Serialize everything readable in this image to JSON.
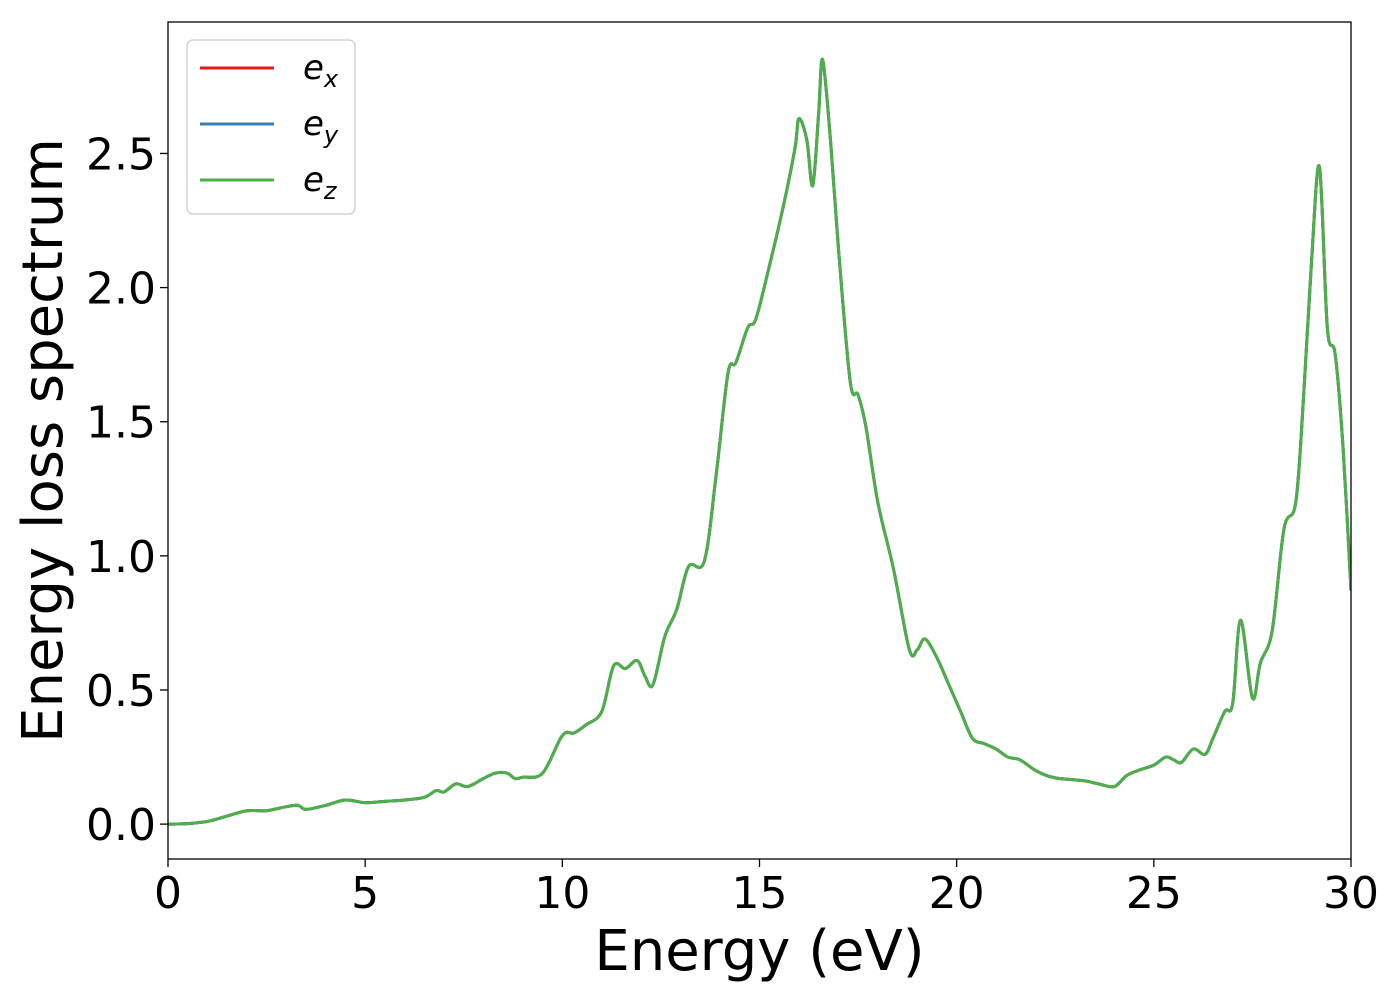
{
  "chart_data": {
    "type": "line",
    "title": "",
    "xlabel": "Energy (eV)",
    "ylabel": "Energy loss spectrum",
    "xlim": [
      0,
      30
    ],
    "ylim": [
      -0.13,
      2.99
    ],
    "xticks": [
      0,
      5,
      10,
      15,
      20,
      25,
      30
    ],
    "xtick_labels": [
      "0",
      "5",
      "10",
      "15",
      "20",
      "25",
      "30"
    ],
    "yticks": [
      0.0,
      0.5,
      1.0,
      1.5,
      2.0,
      2.5
    ],
    "ytick_labels": [
      "0.0",
      "0.5",
      "1.0",
      "1.5",
      "2.0",
      "2.5"
    ],
    "grid": false,
    "legend_position": "top-left",
    "x": [
      0,
      0.5,
      1.0,
      1.5,
      2.0,
      2.5,
      3.0,
      3.3,
      3.5,
      4.0,
      4.5,
      5.0,
      5.5,
      6.0,
      6.5,
      6.8,
      7.0,
      7.3,
      7.6,
      8.0,
      8.3,
      8.6,
      8.8,
      9.0,
      9.5,
      10.0,
      10.3,
      10.6,
      11.0,
      11.3,
      11.6,
      11.9,
      12.1,
      12.3,
      12.6,
      12.9,
      13.2,
      13.6,
      13.9,
      14.2,
      14.4,
      14.7,
      14.9,
      15.2,
      15.6,
      15.9,
      16.0,
      16.2,
      16.35,
      16.5,
      16.6,
      16.8,
      17.0,
      17.3,
      17.5,
      17.7,
      18.0,
      18.4,
      18.8,
      19.0,
      19.2,
      19.5,
      19.8,
      20.1,
      20.4,
      20.7,
      21.0,
      21.3,
      21.6,
      22.0,
      22.3,
      22.6,
      23.0,
      23.3,
      23.6,
      24.0,
      24.3,
      24.6,
      25.0,
      25.3,
      25.5,
      25.7,
      26.0,
      26.3,
      26.5,
      26.8,
      27.0,
      27.2,
      27.5,
      27.7,
      28.0,
      28.3,
      28.6,
      28.8,
      29.0,
      29.2,
      29.4,
      29.6,
      29.8,
      30.0
    ],
    "series": [
      {
        "name": "e_x",
        "color": "#e41a1c",
        "values": [
          0.0,
          0.002,
          0.01,
          0.03,
          0.05,
          0.05,
          0.065,
          0.07,
          0.055,
          0.07,
          0.09,
          0.08,
          0.085,
          0.09,
          0.1,
          0.125,
          0.12,
          0.15,
          0.14,
          0.17,
          0.19,
          0.19,
          0.17,
          0.175,
          0.19,
          0.33,
          0.34,
          0.37,
          0.42,
          0.59,
          0.58,
          0.61,
          0.55,
          0.52,
          0.7,
          0.8,
          0.96,
          0.98,
          1.3,
          1.68,
          1.72,
          1.85,
          1.88,
          2.05,
          2.3,
          2.52,
          2.63,
          2.55,
          2.38,
          2.65,
          2.85,
          2.55,
          2.15,
          1.65,
          1.6,
          1.48,
          1.2,
          0.95,
          0.65,
          0.65,
          0.69,
          0.62,
          0.52,
          0.42,
          0.32,
          0.3,
          0.28,
          0.25,
          0.24,
          0.2,
          0.18,
          0.17,
          0.165,
          0.16,
          0.15,
          0.14,
          0.18,
          0.2,
          0.22,
          0.25,
          0.24,
          0.23,
          0.28,
          0.26,
          0.32,
          0.42,
          0.45,
          0.76,
          0.47,
          0.6,
          0.72,
          1.1,
          1.2,
          1.6,
          2.1,
          2.45,
          1.85,
          1.75,
          1.4,
          0.87
        ]
      },
      {
        "name": "e_y",
        "color": "#377eb8",
        "values": [
          0.0,
          0.002,
          0.01,
          0.03,
          0.05,
          0.05,
          0.065,
          0.07,
          0.055,
          0.07,
          0.09,
          0.08,
          0.085,
          0.09,
          0.1,
          0.125,
          0.12,
          0.15,
          0.14,
          0.17,
          0.19,
          0.19,
          0.17,
          0.175,
          0.19,
          0.33,
          0.34,
          0.37,
          0.42,
          0.59,
          0.58,
          0.61,
          0.55,
          0.52,
          0.7,
          0.8,
          0.96,
          0.98,
          1.3,
          1.68,
          1.72,
          1.85,
          1.88,
          2.05,
          2.3,
          2.52,
          2.63,
          2.55,
          2.38,
          2.65,
          2.85,
          2.55,
          2.15,
          1.65,
          1.6,
          1.48,
          1.2,
          0.95,
          0.65,
          0.65,
          0.69,
          0.62,
          0.52,
          0.42,
          0.32,
          0.3,
          0.28,
          0.25,
          0.24,
          0.2,
          0.18,
          0.17,
          0.165,
          0.16,
          0.15,
          0.14,
          0.18,
          0.2,
          0.22,
          0.25,
          0.24,
          0.23,
          0.28,
          0.26,
          0.32,
          0.42,
          0.45,
          0.76,
          0.47,
          0.6,
          0.72,
          1.1,
          1.2,
          1.6,
          2.1,
          2.45,
          1.85,
          1.75,
          1.4,
          0.87
        ]
      },
      {
        "name": "e_z",
        "color": "#4daf4a",
        "values": [
          0.0,
          0.002,
          0.01,
          0.03,
          0.05,
          0.05,
          0.065,
          0.07,
          0.055,
          0.07,
          0.09,
          0.08,
          0.085,
          0.09,
          0.1,
          0.125,
          0.12,
          0.15,
          0.14,
          0.17,
          0.19,
          0.19,
          0.17,
          0.175,
          0.19,
          0.33,
          0.34,
          0.37,
          0.42,
          0.59,
          0.58,
          0.61,
          0.55,
          0.52,
          0.7,
          0.8,
          0.96,
          0.98,
          1.3,
          1.68,
          1.72,
          1.85,
          1.88,
          2.05,
          2.3,
          2.52,
          2.63,
          2.55,
          2.38,
          2.65,
          2.85,
          2.55,
          2.15,
          1.65,
          1.6,
          1.48,
          1.2,
          0.95,
          0.65,
          0.65,
          0.69,
          0.62,
          0.52,
          0.42,
          0.32,
          0.3,
          0.28,
          0.25,
          0.24,
          0.2,
          0.18,
          0.17,
          0.165,
          0.16,
          0.15,
          0.14,
          0.18,
          0.2,
          0.22,
          0.25,
          0.24,
          0.23,
          0.28,
          0.26,
          0.32,
          0.42,
          0.45,
          0.76,
          0.47,
          0.6,
          0.72,
          1.1,
          1.2,
          1.6,
          2.1,
          2.45,
          1.85,
          1.75,
          1.4,
          0.87
        ]
      }
    ],
    "legend": [
      {
        "base": "e",
        "sub": "x",
        "color": "#e41a1c"
      },
      {
        "base": "e",
        "sub": "y",
        "color": "#377eb8"
      },
      {
        "base": "e",
        "sub": "z",
        "color": "#4daf4a"
      }
    ]
  }
}
